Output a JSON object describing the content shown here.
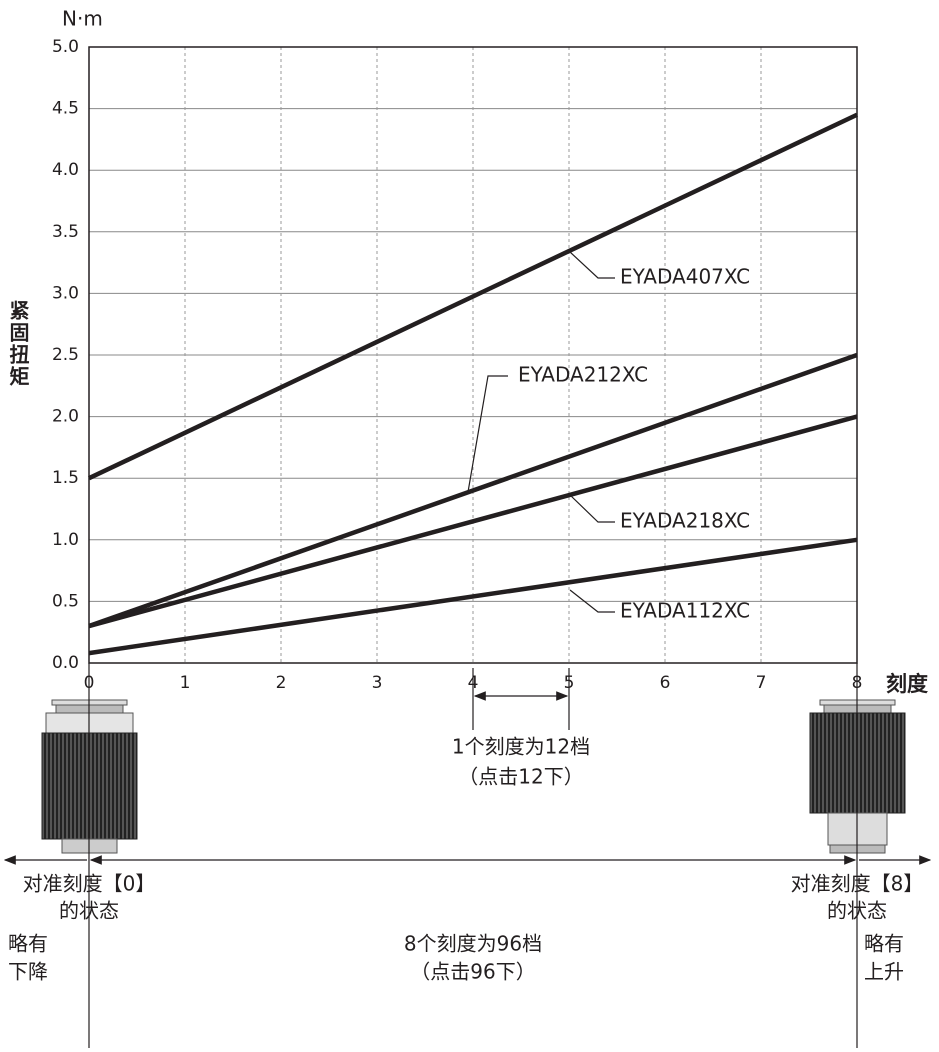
{
  "chart_data": {
    "type": "line",
    "y_unit": "N·m",
    "ylabel": "紧固扭矩",
    "xlabel": "刻度",
    "xlim": [
      0,
      8
    ],
    "ylim": [
      0,
      5
    ],
    "xticks": [
      0,
      1,
      2,
      3,
      4,
      5,
      6,
      7,
      8
    ],
    "yticks": [
      {
        "value": 0,
        "label": "0.0"
      },
      0.5,
      {
        "value": 1,
        "label": "1.0"
      },
      1.5,
      {
        "value": 2,
        "label": "2.0"
      },
      2.5,
      {
        "value": 3,
        "label": "3.0"
      },
      3.5,
      {
        "value": 4,
        "label": "4.0"
      },
      4.5,
      {
        "value": 5,
        "label": "5.0"
      }
    ],
    "grid": true,
    "series": [
      {
        "name": "EYADA407XC",
        "color": "#231f20",
        "x": [
          0,
          8
        ],
        "values": [
          1.5,
          4.45
        ]
      },
      {
        "name": "EYADA212XC",
        "color": "#231f20",
        "x": [
          0,
          8
        ],
        "values": [
          0.3,
          2.5
        ]
      },
      {
        "name": "EYADA218XC",
        "color": "#231f20",
        "x": [
          0,
          8
        ],
        "values": [
          0.3,
          2.0
        ]
      },
      {
        "name": "EYADA112XC",
        "color": "#231f20",
        "x": [
          0,
          8
        ],
        "values": [
          0.08,
          1.0
        ]
      }
    ],
    "annotations": [
      "1个刻度为12档",
      "（点击12下）",
      "对准刻度【0】",
      "的状态",
      "对准刻度【8】",
      "的状态",
      "略有",
      "下降",
      "8个刻度为96档",
      "（点击96下）",
      "略有",
      "上升"
    ]
  }
}
